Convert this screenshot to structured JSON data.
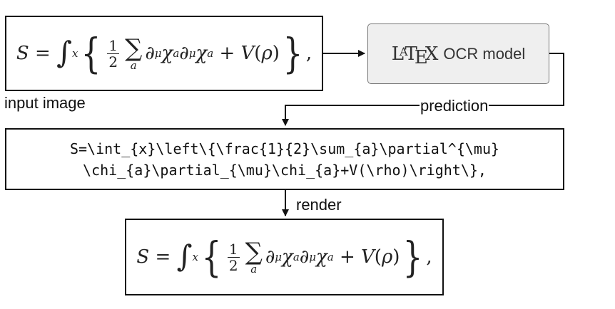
{
  "input_box": {
    "formula": "S = ∫x { 1/2 Σa ∂μ χa ∂μ χa + V(ρ) },",
    "caption": "input image"
  },
  "model_box": {
    "logo_text": "LaTeX",
    "label": "OCR model"
  },
  "edge_prediction_label": "prediction",
  "prediction_box": {
    "line1": "S=\\int_{x}\\left\\{\\frac{1}{2}\\sum_{a}\\partial^{\\mu}",
    "line2": "\\chi_{a}\\partial_{\\mu}\\chi_{a}+V(\\rho)\\right\\},"
  },
  "edge_render_label": "render",
  "rendered_box": {
    "formula": "S = ∫x { 1/2 Σa ∂μ χa ∂μ χa + V(ρ) },"
  },
  "colors": {
    "stroke": "#111111",
    "model_fill": "#efefef",
    "model_border": "#777777"
  }
}
